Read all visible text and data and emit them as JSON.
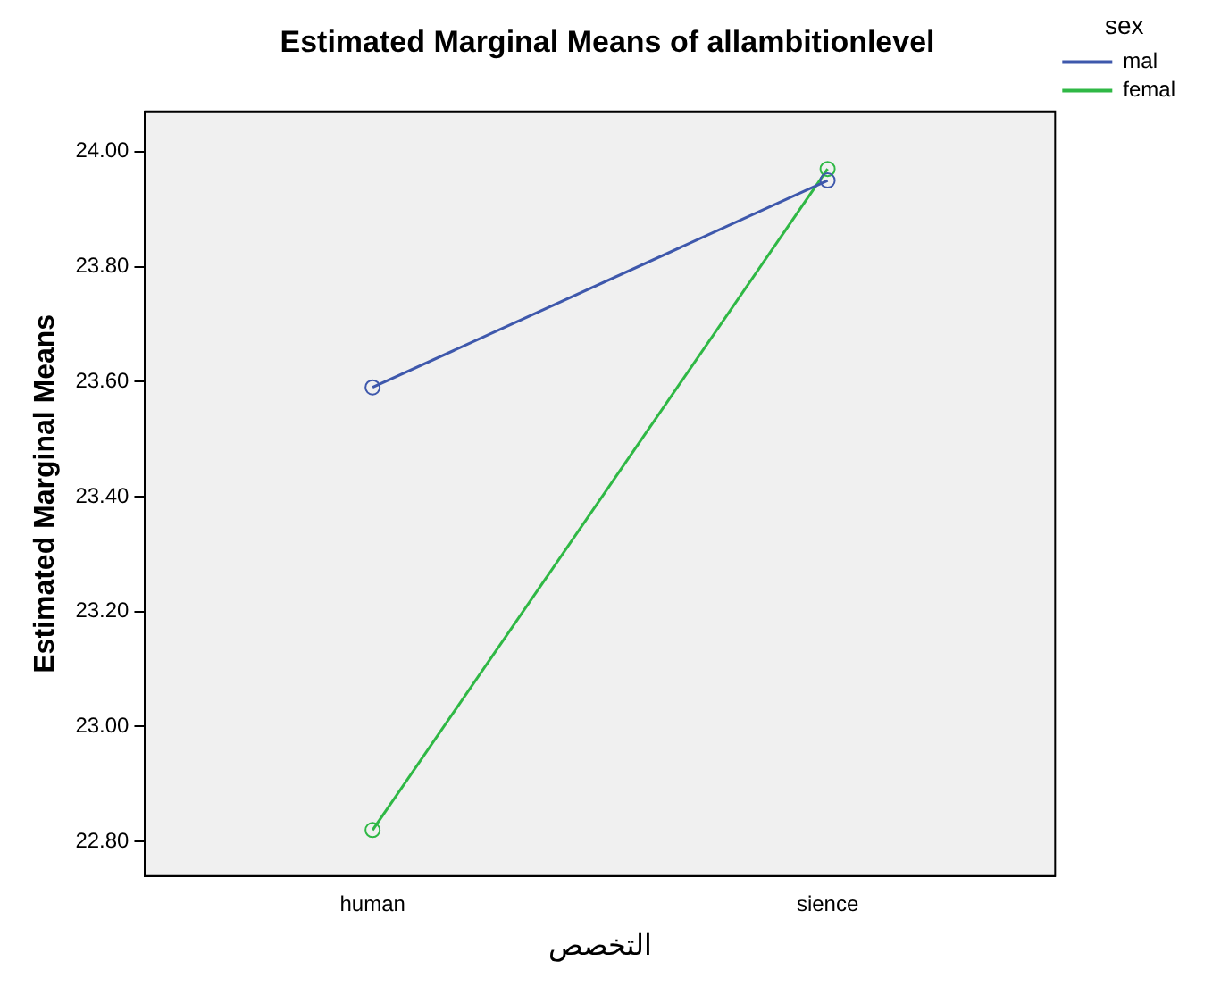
{
  "chart_data": {
    "type": "line",
    "title": "Estimated Marginal Means of allambitionlevel",
    "xlabel": "التخصص",
    "ylabel": "Estimated Marginal Means",
    "legend_title": "sex",
    "categories": [
      "human",
      "sience"
    ],
    "series": [
      {
        "name": "mal",
        "color": "#3e58ac",
        "values": [
          23.59,
          23.95
        ]
      },
      {
        "name": "femal",
        "color": "#2fb845",
        "values": [
          22.82,
          23.97
        ]
      }
    ],
    "ylim": [
      22.74,
      24.07
    ],
    "yticks": [
      {
        "value": 22.8,
        "label": "22.80"
      },
      {
        "value": 23.0,
        "label": "23.00"
      },
      {
        "value": 23.2,
        "label": "23.20"
      },
      {
        "value": 23.4,
        "label": "23.40"
      },
      {
        "value": 23.6,
        "label": "23.60"
      },
      {
        "value": 23.8,
        "label": "23.80"
      },
      {
        "value": 24.0,
        "label": "24.00"
      }
    ],
    "grid": false,
    "legend": "top right",
    "marker": "circle",
    "line_style": "solid"
  }
}
